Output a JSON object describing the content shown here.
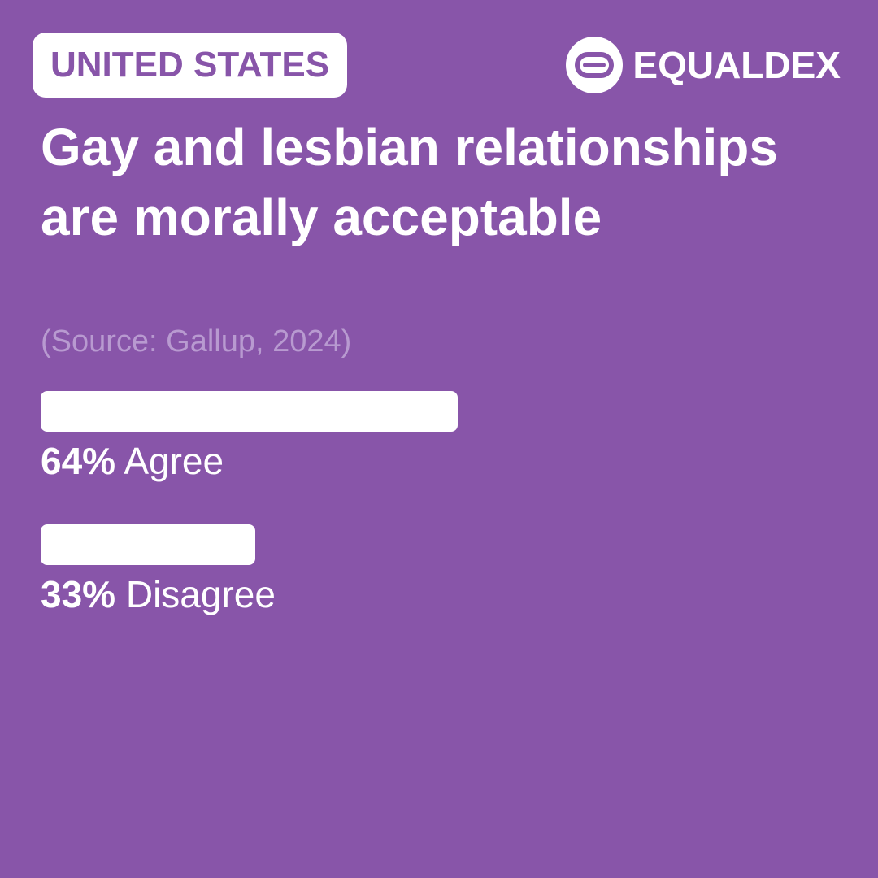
{
  "badge": {
    "country": "UNITED STATES"
  },
  "brand": {
    "name": "EQUALDEX",
    "logo_icon": "equaldex-logo-icon"
  },
  "colors": {
    "background": "#8855a9",
    "bar": "#ffffff",
    "source_text": "#b89ad0"
  },
  "chart_data": {
    "type": "bar",
    "orientation": "horizontal",
    "title": "Gay and lesbian relationships are morally acceptable",
    "source": "(Source: Gallup, 2024)",
    "unit": "%",
    "max": 100,
    "bars": [
      {
        "value": 64,
        "value_label": "64%",
        "label": "Agree"
      },
      {
        "value": 33,
        "value_label": "33%",
        "label": "Disagree"
      }
    ]
  }
}
